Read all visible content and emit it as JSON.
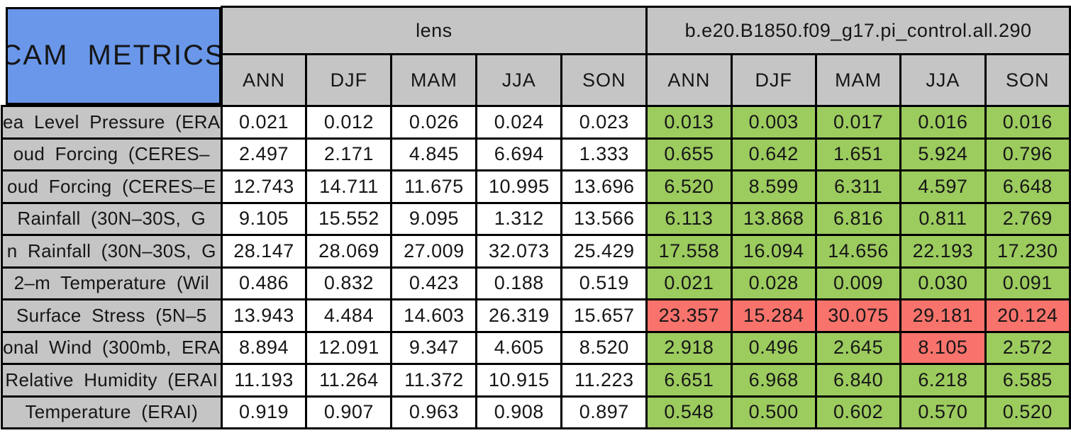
{
  "colors": {
    "title_blue": "#6A97EA",
    "header_gray": "#C5C5C5",
    "good_green": "#9CCB5E",
    "bad_red": "#F8736C",
    "border": "#000000",
    "value_white": "#FFFFFF"
  },
  "chart_data": {
    "type": "table",
    "title": "CAM METRICS",
    "column_groups": [
      {
        "label": "lens",
        "seasons": [
          "ANN",
          "DJF",
          "MAM",
          "JJA",
          "SON"
        ]
      },
      {
        "label": "b.e20.B1850.f09_g17.pi_control.all.290",
        "seasons": [
          "ANN",
          "DJF",
          "MAM",
          "JJA",
          "SON"
        ]
      }
    ],
    "rows": [
      {
        "label": "ea Level Pressure (ERA",
        "lens": [
          "0.021",
          "0.012",
          "0.026",
          "0.024",
          "0.023"
        ],
        "control": [
          "0.013",
          "0.003",
          "0.017",
          "0.016",
          "0.016"
        ],
        "control_flags": [
          "good",
          "good",
          "good",
          "good",
          "good"
        ]
      },
      {
        "label": "oud Forcing (CERES–",
        "lens": [
          "2.497",
          "2.171",
          "4.845",
          "6.694",
          "1.333"
        ],
        "control": [
          "0.655",
          "0.642",
          "1.651",
          "5.924",
          "0.796"
        ],
        "control_flags": [
          "good",
          "good",
          "good",
          "good",
          "good"
        ]
      },
      {
        "label": "oud Forcing (CERES–E",
        "lens": [
          "12.743",
          "14.711",
          "11.675",
          "10.995",
          "13.696"
        ],
        "control": [
          "6.520",
          "8.599",
          "6.311",
          "4.597",
          "6.648"
        ],
        "control_flags": [
          "good",
          "good",
          "good",
          "good",
          "good"
        ]
      },
      {
        "label": "Rainfall (30N–30S, G",
        "lens": [
          "9.105",
          "15.552",
          "9.095",
          "1.312",
          "13.566"
        ],
        "control": [
          "6.113",
          "13.868",
          "6.816",
          "0.811",
          "2.769"
        ],
        "control_flags": [
          "good",
          "good",
          "good",
          "good",
          "good"
        ]
      },
      {
        "label": "n Rainfall (30N–30S, G",
        "lens": [
          "28.147",
          "28.069",
          "27.009",
          "32.073",
          "25.429"
        ],
        "control": [
          "17.558",
          "16.094",
          "14.656",
          "22.193",
          "17.230"
        ],
        "control_flags": [
          "good",
          "good",
          "good",
          "good",
          "good"
        ]
      },
      {
        "label": "2–m Temperature (Wil",
        "lens": [
          "0.486",
          "0.832",
          "0.423",
          "0.188",
          "0.519"
        ],
        "control": [
          "0.021",
          "0.028",
          "0.009",
          "0.030",
          "0.091"
        ],
        "control_flags": [
          "good",
          "good",
          "good",
          "good",
          "good"
        ]
      },
      {
        "label": "Surface Stress (5N–5",
        "lens": [
          "13.943",
          "4.484",
          "14.603",
          "26.319",
          "15.657"
        ],
        "control": [
          "23.357",
          "15.284",
          "30.075",
          "29.181",
          "20.124"
        ],
        "control_flags": [
          "bad",
          "bad",
          "bad",
          "bad",
          "bad"
        ]
      },
      {
        "label": "onal Wind (300mb, ERA",
        "lens": [
          "8.894",
          "12.091",
          "9.347",
          "4.605",
          "8.520"
        ],
        "control": [
          "2.918",
          "0.496",
          "2.645",
          "8.105",
          "2.572"
        ],
        "control_flags": [
          "good",
          "good",
          "good",
          "bad",
          "good"
        ]
      },
      {
        "label": "Relative Humidity (ERAI",
        "lens": [
          "11.193",
          "11.264",
          "11.372",
          "10.915",
          "11.223"
        ],
        "control": [
          "6.651",
          "6.968",
          "6.840",
          "6.218",
          "6.585"
        ],
        "control_flags": [
          "good",
          "good",
          "good",
          "good",
          "good"
        ]
      },
      {
        "label": "Temperature (ERAI)",
        "lens": [
          "0.919",
          "0.907",
          "0.963",
          "0.908",
          "0.897"
        ],
        "control": [
          "0.548",
          "0.500",
          "0.602",
          "0.570",
          "0.520"
        ],
        "control_flags": [
          "good",
          "good",
          "good",
          "good",
          "good"
        ]
      }
    ]
  }
}
